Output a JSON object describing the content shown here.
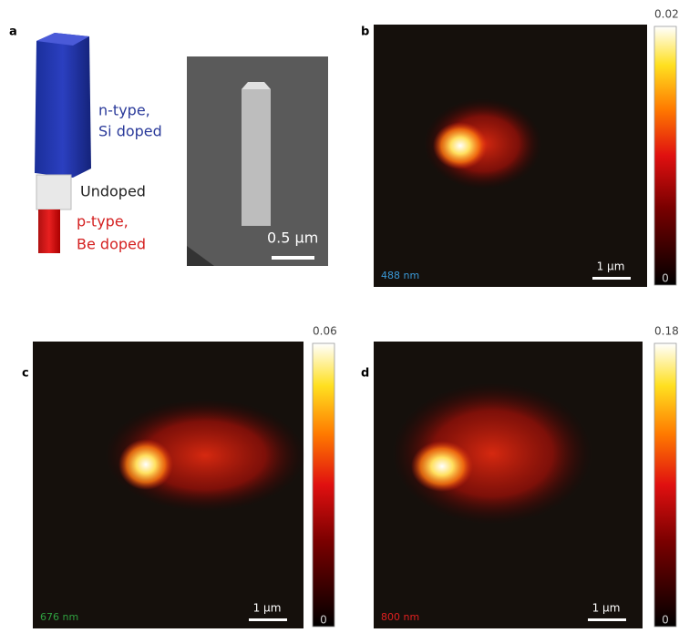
{
  "panel_a": {
    "label": "a",
    "n_type": [
      "n-type,",
      "Si doped"
    ],
    "undoped": "Undoped",
    "p_type": [
      "p-type,",
      "Be doped"
    ],
    "scale_bar": "0.5 µm"
  },
  "maps": [
    {
      "label": "b",
      "wavelength": "488 nm",
      "scale_bar": "1 µm",
      "colorbar_max": 0.02,
      "colorbar_min": 0
    },
    {
      "label": "c",
      "wavelength": "676 nm",
      "scale_bar": "1 µm",
      "colorbar_max": 0.06,
      "colorbar_min": 0
    },
    {
      "label": "d",
      "wavelength": "800 nm",
      "scale_bar": "1 µm",
      "colorbar_max": 0.18,
      "colorbar_min": 0
    }
  ]
}
